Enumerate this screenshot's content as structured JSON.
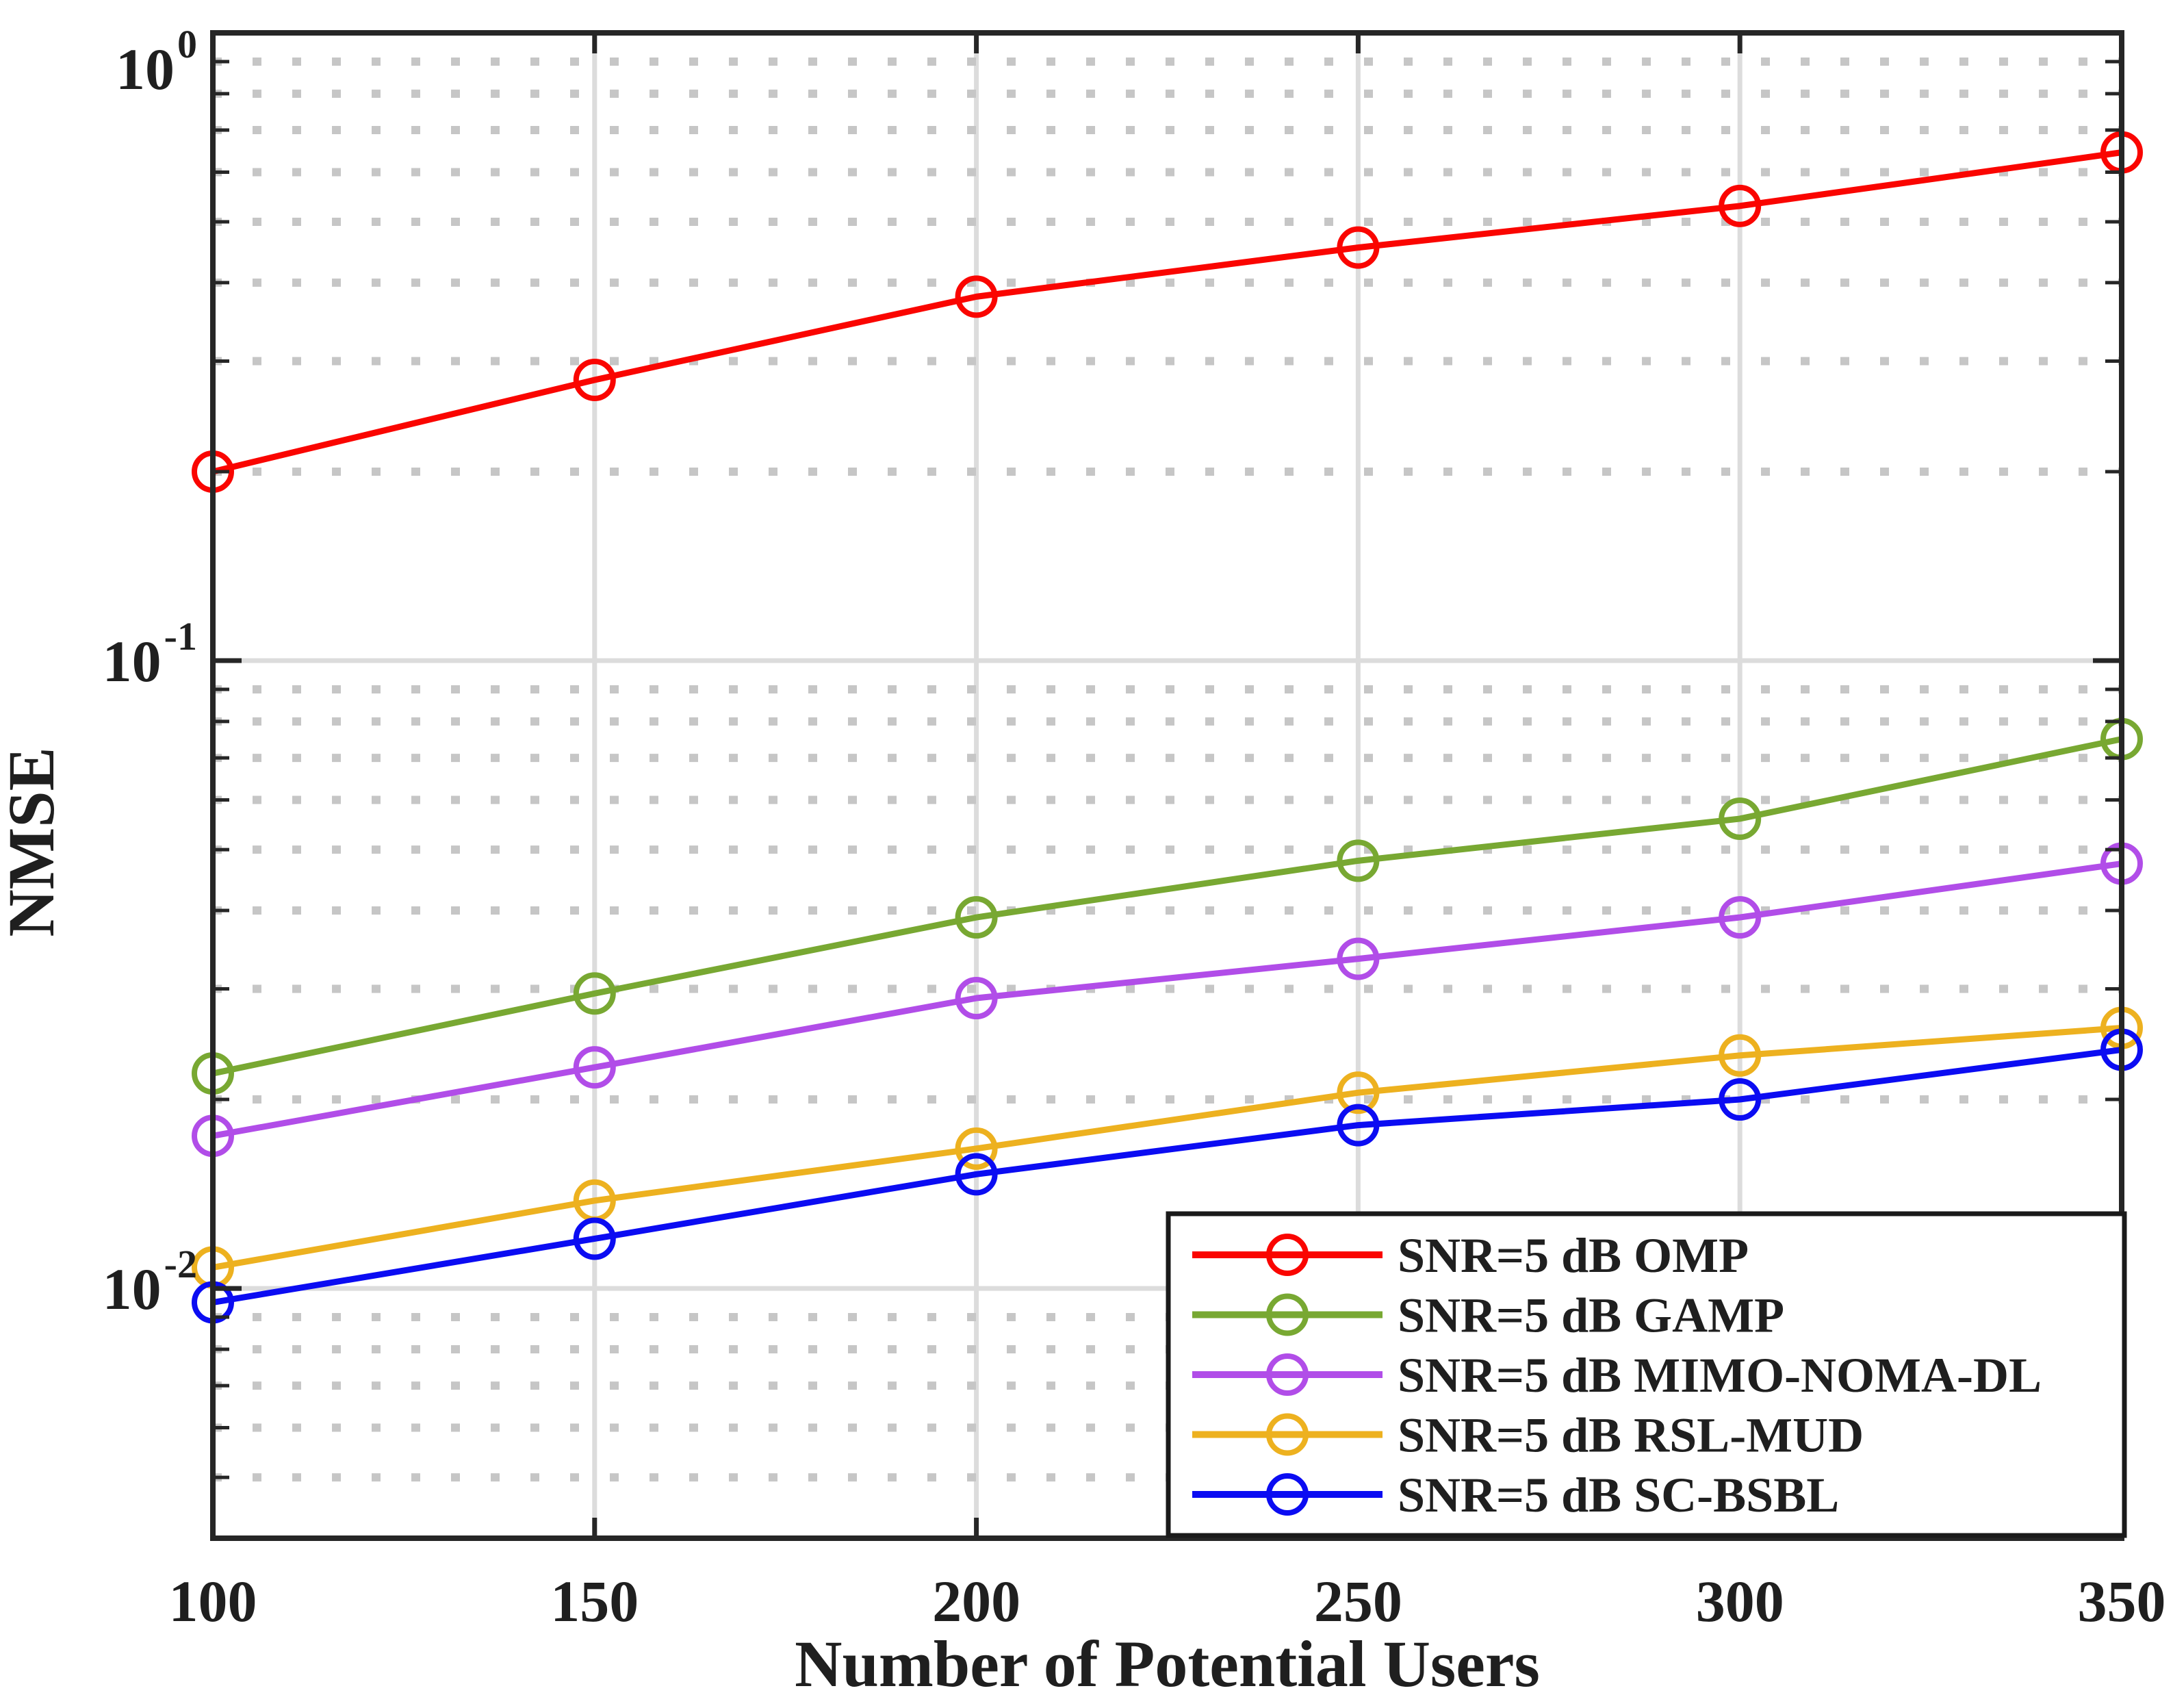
{
  "figure": {
    "background_color": "#ffffff",
    "axis_frame_color": "#262626",
    "major_grid_color": "#dcdcdc",
    "minor_grid_color": "#c6c6c6",
    "text_color": "#1f1f1f"
  },
  "chart_data": {
    "type": "line",
    "title": "",
    "xlabel": "Number of Potential Users",
    "ylabel": "NMSE",
    "x": [
      100,
      150,
      200,
      250,
      300,
      350
    ],
    "xticks": [
      100,
      150,
      200,
      250,
      300,
      350
    ],
    "xtick_labels": [
      "100",
      "150",
      "200",
      "250",
      "300",
      "350"
    ],
    "xlim": [
      100,
      350
    ],
    "yscale": "log",
    "ylim": [
      0.004,
      1.0
    ],
    "ytick_exponents": [
      0,
      -1,
      -2
    ],
    "ytick_base": "10",
    "grid": {
      "major": true,
      "minor": true,
      "minor_style": "dotted",
      "vertical_major": true
    },
    "legend": {
      "position": "bottom-right",
      "border": true,
      "background": "#ffffff"
    },
    "marker": "open-circle",
    "series": [
      {
        "name": "SNR=5 dB OMP",
        "color": "#fa0500",
        "marker": "circle",
        "values": [
          0.2,
          0.28,
          0.38,
          0.455,
          0.53,
          0.645
        ]
      },
      {
        "name": "SNR=5 dB GAMP",
        "color": "#78a832",
        "marker": "circle",
        "values": [
          0.022,
          0.0295,
          0.039,
          0.048,
          0.056,
          0.075
        ]
      },
      {
        "name": "SNR=5 dB MIMO-NOMA-DL",
        "color": "#b14de8",
        "marker": "circle",
        "values": [
          0.0175,
          0.0225,
          0.029,
          0.0335,
          0.039,
          0.0475
        ]
      },
      {
        "name": "SNR=5 dB RSL-MUD",
        "color": "#edb11f",
        "marker": "circle",
        "values": [
          0.0108,
          0.0138,
          0.0167,
          0.0205,
          0.0235,
          0.026
        ]
      },
      {
        "name": "SNR=5 dB SC-BSBL",
        "color": "#0b0cf2",
        "marker": "circle",
        "values": [
          0.0095,
          0.012,
          0.0152,
          0.0182,
          0.02,
          0.024
        ]
      }
    ]
  }
}
